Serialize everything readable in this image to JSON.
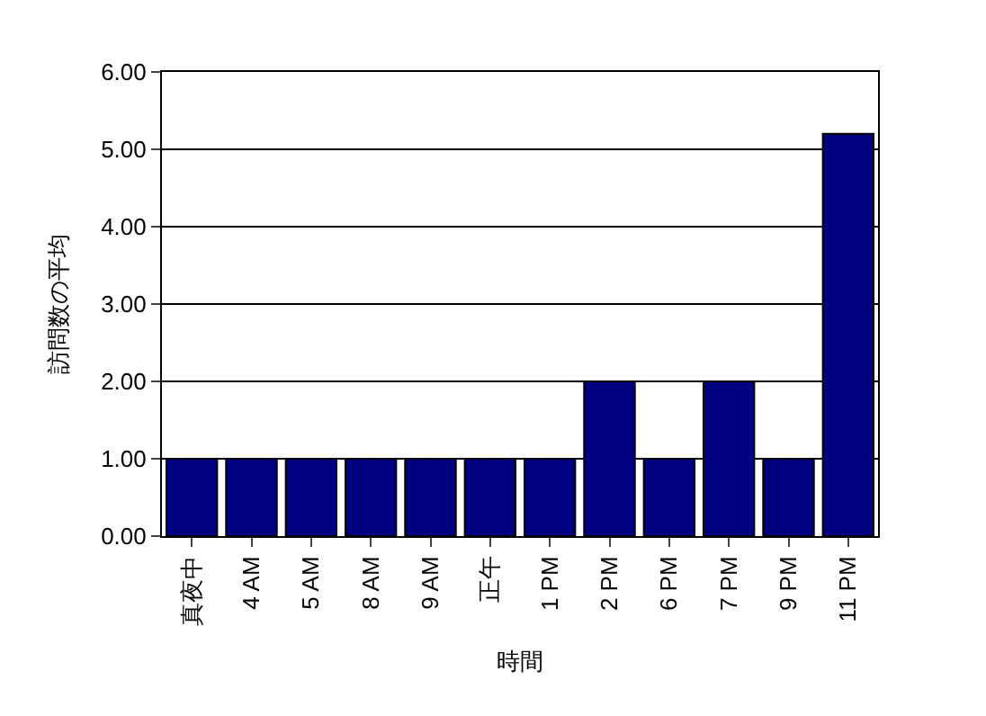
{
  "chart_data": {
    "type": "bar",
    "xlabel": "時間",
    "ylabel": "訪問数の平均",
    "categories": [
      "真夜中",
      "4 AM",
      "5 AM",
      "8 AM",
      "9 AM",
      "正午",
      "1 PM",
      "2 PM",
      "6 PM",
      "7 PM",
      "9 PM",
      "11 PM"
    ],
    "values": [
      1,
      1,
      1,
      1,
      1,
      1,
      1,
      2,
      1,
      2,
      1,
      5.2
    ],
    "color": "#000080",
    "ylim": [
      0,
      6
    ],
    "yticks": [
      {
        "value": 0,
        "label": "0.00"
      },
      {
        "value": 1,
        "label": "1.00"
      },
      {
        "value": 2,
        "label": "2.00"
      },
      {
        "value": 3,
        "label": "3.00"
      },
      {
        "value": 4,
        "label": "4.00"
      },
      {
        "value": 5,
        "label": "5.00"
      },
      {
        "value": 6,
        "label": "6.00"
      }
    ],
    "grid": "y",
    "legend": false
  }
}
